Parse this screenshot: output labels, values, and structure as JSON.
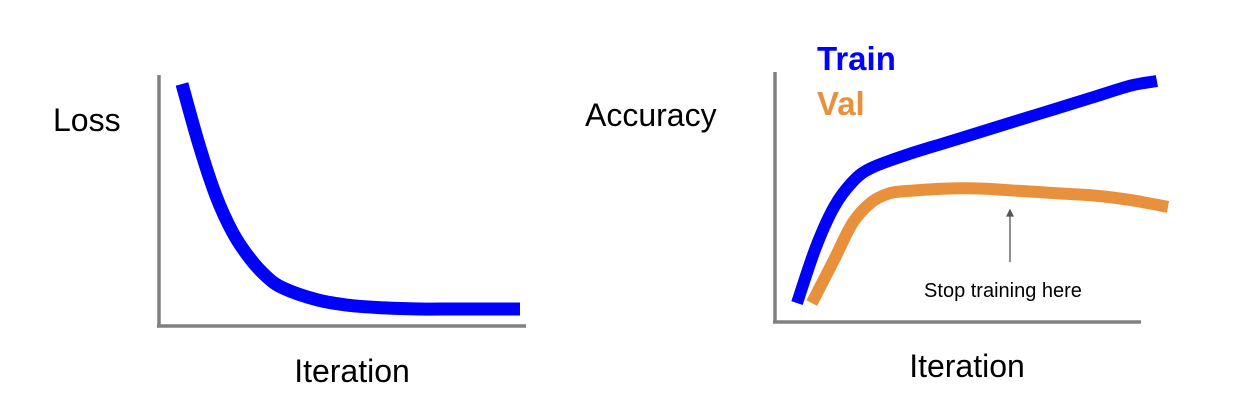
{
  "chart_data": [
    {
      "type": "line",
      "ylabel": "Loss",
      "xlabel": "Iteration",
      "x_ticks": false,
      "y_ticks": false,
      "grid": false,
      "legend": "none",
      "series": [
        {
          "color": "#0000ff",
          "x": [
            0.0,
            0.05,
            0.1,
            0.15,
            0.2,
            0.25,
            0.3,
            0.4,
            0.5,
            0.6,
            0.7,
            0.8,
            0.9,
            1.0
          ],
          "y": [
            1.0,
            0.74,
            0.52,
            0.36,
            0.25,
            0.17,
            0.12,
            0.07,
            0.045,
            0.035,
            0.03,
            0.03,
            0.03,
            0.03
          ]
        }
      ]
    },
    {
      "type": "line",
      "ylabel": "Accuracy",
      "xlabel": "Iteration",
      "x_ticks": false,
      "y_ticks": false,
      "grid": false,
      "legend": "top-left",
      "series": [
        {
          "name": "Train",
          "color": "#0000ff",
          "x": [
            0.0,
            0.05,
            0.1,
            0.15,
            0.2,
            0.3,
            0.4,
            0.5,
            0.6,
            0.7,
            0.8,
            0.9,
            0.97
          ],
          "y": [
            0.03,
            0.27,
            0.45,
            0.56,
            0.62,
            0.68,
            0.73,
            0.78,
            0.83,
            0.88,
            0.93,
            0.98,
            1.0
          ]
        },
        {
          "name": "Val",
          "color": "#e8903c",
          "x": [
            0.04,
            0.1,
            0.15,
            0.2,
            0.25,
            0.3,
            0.4,
            0.5,
            0.6,
            0.7,
            0.8,
            0.9,
            1.0
          ],
          "y": [
            0.03,
            0.22,
            0.38,
            0.47,
            0.51,
            0.52,
            0.53,
            0.53,
            0.52,
            0.51,
            0.5,
            0.48,
            0.45
          ]
        }
      ],
      "annotations": [
        {
          "text": "Stop training here",
          "x": 0.55,
          "y": 0.53
        }
      ]
    }
  ]
}
